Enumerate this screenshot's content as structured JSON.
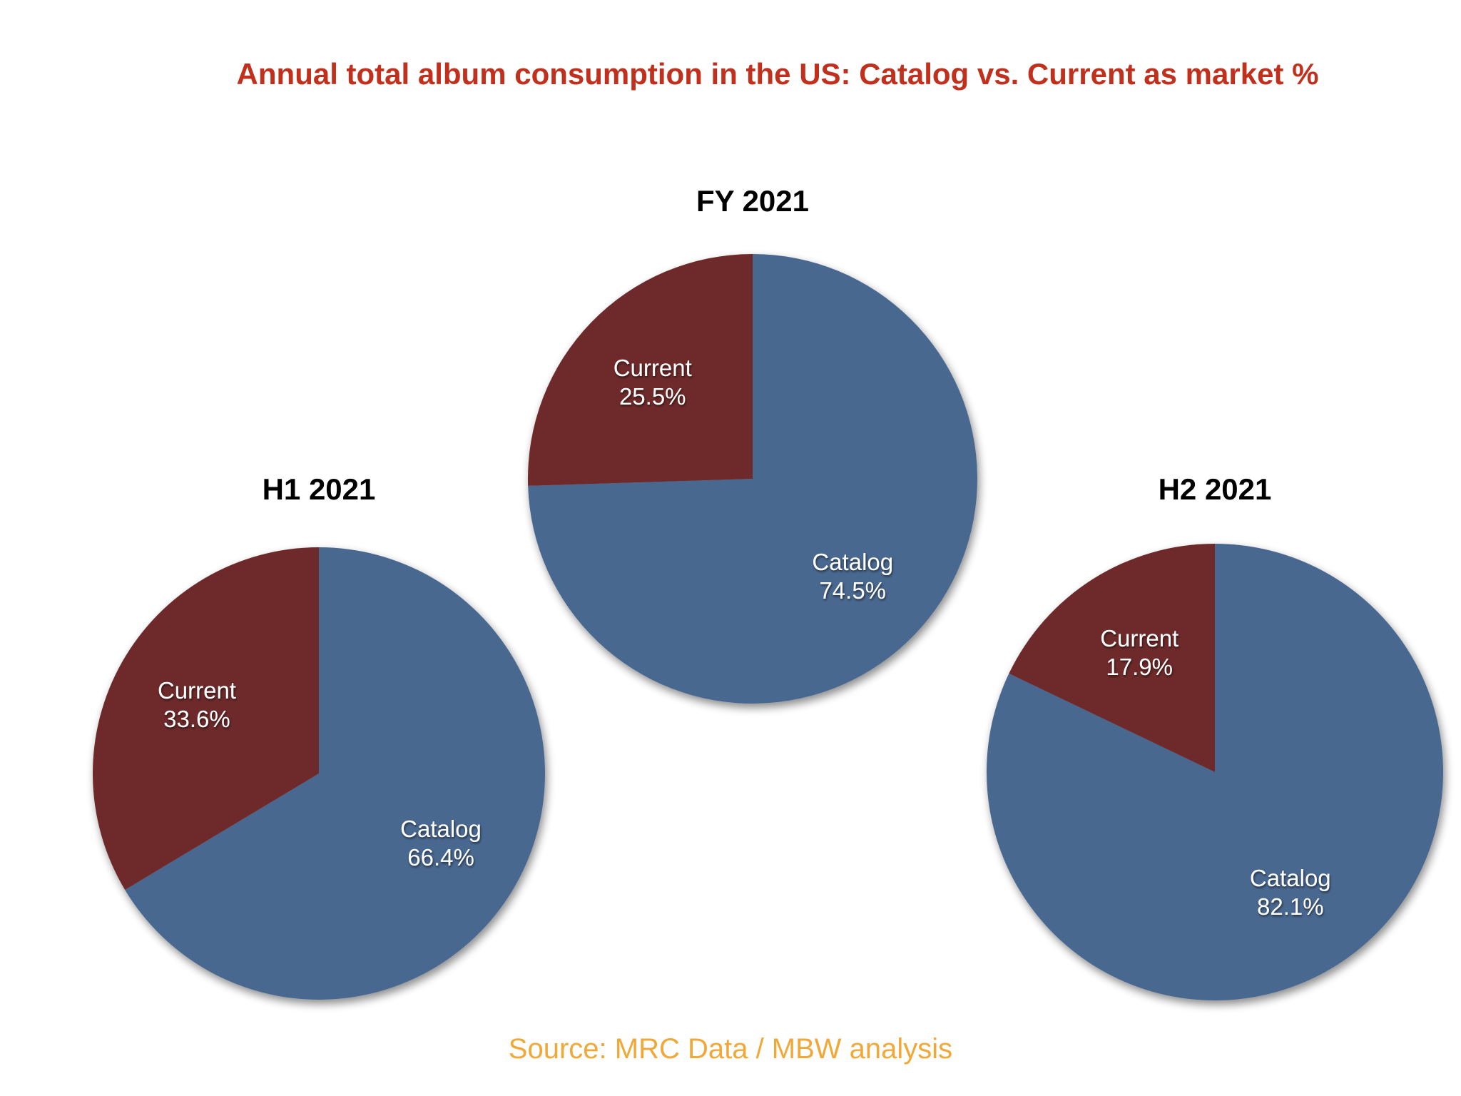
{
  "title": "Annual total album consumption in the US: Catalog vs. Current as market %",
  "source": "Source: MRC Data / MBW analysis",
  "colors": {
    "title": "#c0301c",
    "catalog": "#4a6890",
    "current": "#6e2a2a",
    "source": "#f0a838",
    "chart_title": "#000000",
    "slice_label": "#ffffff"
  },
  "chart_data": [
    {
      "type": "pie",
      "title": "H1 2021",
      "slices": [
        {
          "name": "Catalog",
          "value": 66.4,
          "label": "66.4%"
        },
        {
          "name": "Current",
          "value": 33.6,
          "label": "33.6%"
        }
      ]
    },
    {
      "type": "pie",
      "title": "FY 2021",
      "slices": [
        {
          "name": "Catalog",
          "value": 74.5,
          "label": "74.5%"
        },
        {
          "name": "Current",
          "value": 25.5,
          "label": "25.5%"
        }
      ]
    },
    {
      "type": "pie",
      "title": "H2 2021",
      "slices": [
        {
          "name": "Catalog",
          "value": 82.1,
          "label": "82.1%"
        },
        {
          "name": "Current",
          "value": 17.9,
          "label": "17.9%"
        }
      ]
    }
  ]
}
